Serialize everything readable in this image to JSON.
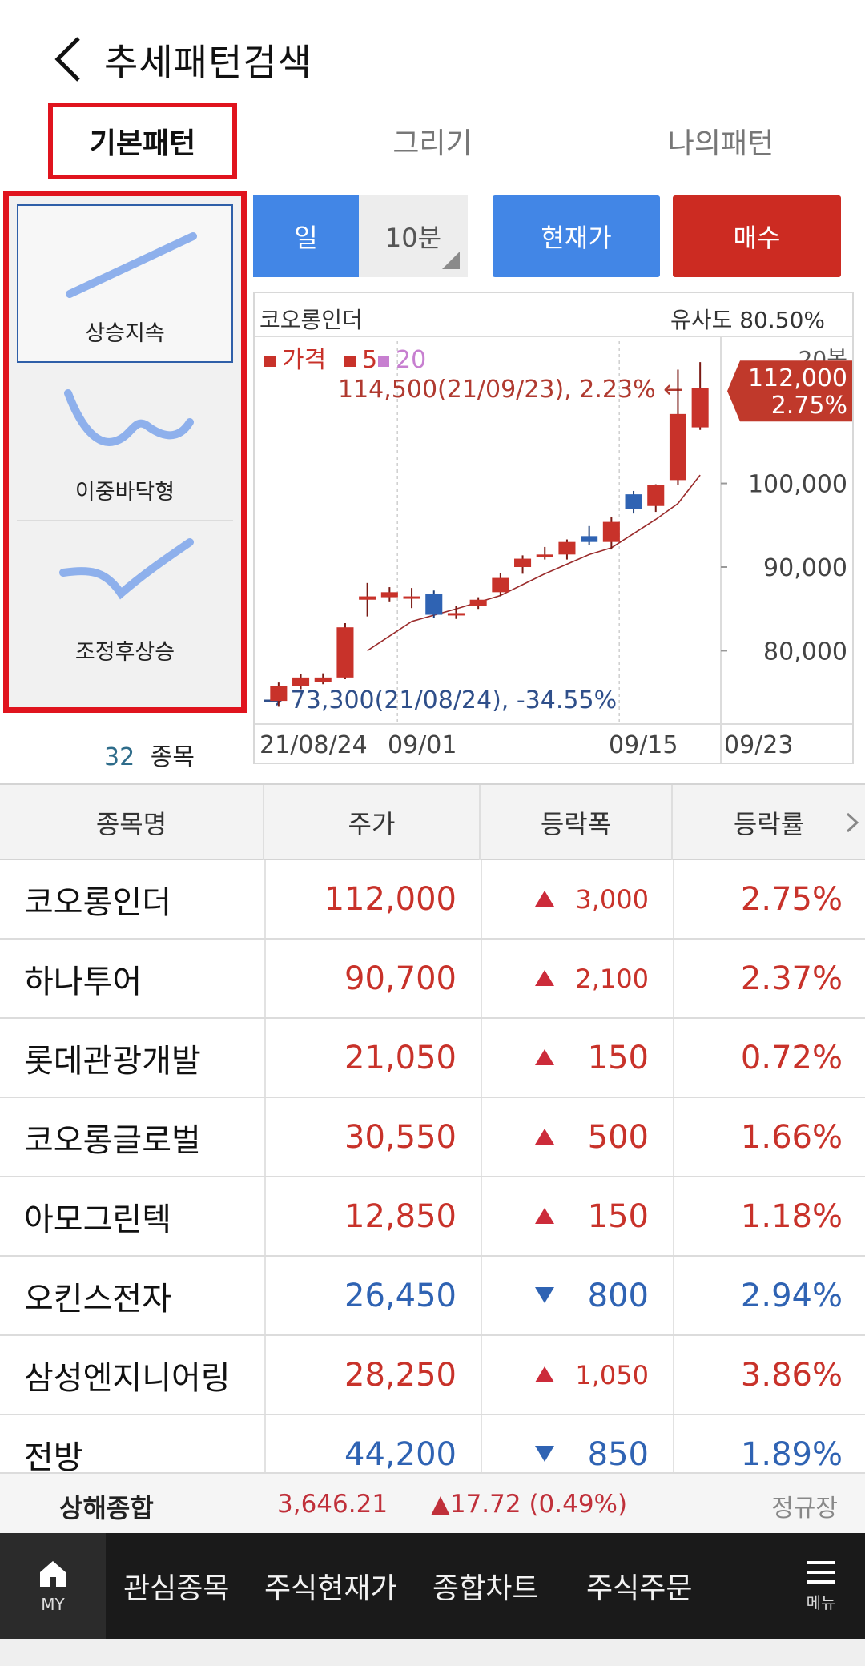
{
  "header": {
    "title": "추세패턴검색"
  },
  "tabs": [
    {
      "label": "기본패턴"
    },
    {
      "label": "그리기"
    },
    {
      "label": "나의패턴"
    }
  ],
  "patterns": [
    {
      "label": "상승지속",
      "icon": "rising-line-pattern-icon"
    },
    {
      "label": "이중바닥형",
      "icon": "double-bottom-pattern-icon"
    },
    {
      "label": "조정후상승",
      "icon": "correction-rise-pattern-icon"
    }
  ],
  "result": {
    "count": "32",
    "unit": "종목"
  },
  "controls": {
    "day": "일",
    "interval": "10분",
    "current_price": "현재가",
    "buy": "매수"
  },
  "chart_data": {
    "type": "candlestick",
    "stock_name": "코오롱인더",
    "similarity": "유사도 80.50%",
    "legend": [
      {
        "name": "가격",
        "color": "#c8322a"
      },
      {
        "name": "5",
        "color": "#c8322a"
      },
      {
        "name": "20",
        "color": "#c77fd0"
      }
    ],
    "bars_label": "20봉",
    "high_annotation": "114,500(21/09/23), 2.23% ←",
    "low_annotation": "→ 73,300(21/08/24), -34.55%",
    "current_price_label": "112,000",
    "current_rate_label": "2.75%",
    "y_ticks": [
      "100,000",
      "90,000",
      "80,000"
    ],
    "y_tick_values": [
      100000,
      90000,
      80000
    ],
    "x_ticks": [
      "21/08/24",
      "09/01",
      "09/15",
      "09/23"
    ],
    "ylim": [
      72000,
      117000
    ],
    "candles": [
      {
        "open": 74000,
        "close": 75800,
        "high": 76200,
        "low": 73300
      },
      {
        "open": 75800,
        "close": 76800,
        "high": 77200,
        "low": 75400
      },
      {
        "open": 76300,
        "close": 76800,
        "high": 77300,
        "low": 76000
      },
      {
        "open": 76800,
        "close": 82800,
        "high": 83300,
        "low": 76600
      },
      {
        "open": 86100,
        "close": 86500,
        "high": 88100,
        "low": 84100
      },
      {
        "open": 86400,
        "close": 87000,
        "high": 87600,
        "low": 85900
      },
      {
        "open": 86400,
        "close": 86500,
        "high": 87500,
        "low": 85100
      },
      {
        "open": 86800,
        "close": 84300,
        "high": 87200,
        "low": 83900
      },
      {
        "open": 84500,
        "close": 84500,
        "high": 85400,
        "low": 83800
      },
      {
        "open": 85400,
        "close": 86100,
        "high": 86400,
        "low": 85000
      },
      {
        "open": 87000,
        "close": 88700,
        "high": 89300,
        "low": 86500
      },
      {
        "open": 90000,
        "close": 91000,
        "high": 91400,
        "low": 89200
      },
      {
        "open": 91500,
        "close": 91500,
        "high": 92400,
        "low": 90900
      },
      {
        "open": 91500,
        "close": 93000,
        "high": 93300,
        "low": 90900
      },
      {
        "open": 93700,
        "close": 93000,
        "high": 94900,
        "low": 92600
      },
      {
        "open": 93000,
        "close": 95400,
        "high": 96000,
        "low": 92100
      },
      {
        "open": 98700,
        "close": 96900,
        "high": 99100,
        "low": 96400
      },
      {
        "open": 97300,
        "close": 99800,
        "high": 99900,
        "low": 96600
      },
      {
        "open": 100400,
        "close": 108300,
        "high": 113600,
        "low": 99800
      },
      {
        "open": 106700,
        "close": 111400,
        "high": 114500,
        "low": 106400
      }
    ],
    "ma": [
      {
        "i": 4,
        "v": 80000
      },
      {
        "i": 6,
        "v": 83500
      },
      {
        "i": 8,
        "v": 85000
      },
      {
        "i": 10,
        "v": 86600
      },
      {
        "i": 12,
        "v": 89200
      },
      {
        "i": 14,
        "v": 91500
      },
      {
        "i": 15,
        "v": 92300
      },
      {
        "i": 17,
        "v": 95700
      },
      {
        "i": 18,
        "v": 97600
      },
      {
        "i": 19,
        "v": 101000
      }
    ]
  },
  "table": {
    "headers": [
      "종목명",
      "주가",
      "등락폭",
      "등락률"
    ],
    "rows": [
      {
        "name": "코오롱인더",
        "price": "112,000",
        "dir": "up",
        "change": "3,000",
        "rate": "2.75%",
        "small": true
      },
      {
        "name": "하나투어",
        "price": "90,700",
        "dir": "up",
        "change": "2,100",
        "rate": "2.37%",
        "small": true
      },
      {
        "name": "롯데관광개발",
        "price": "21,050",
        "dir": "up",
        "change": "150",
        "rate": "0.72%",
        "small": false
      },
      {
        "name": "코오롱글로벌",
        "price": "30,550",
        "dir": "up",
        "change": "500",
        "rate": "1.66%",
        "small": false
      },
      {
        "name": "아모그린텍",
        "price": "12,850",
        "dir": "up",
        "change": "150",
        "rate": "1.18%",
        "small": false
      },
      {
        "name": "오킨스전자",
        "price": "26,450",
        "dir": "down",
        "change": "800",
        "rate": "2.94%",
        "small": false
      },
      {
        "name": "삼성엔지니어링",
        "price": "28,250",
        "dir": "up",
        "change": "1,050",
        "rate": "3.86%",
        "small": true
      },
      {
        "name": "전방",
        "price": "44,200",
        "dir": "down",
        "change": "850",
        "rate": "1.89%",
        "small": false
      }
    ]
  },
  "index_bar": {
    "name": "상해종합",
    "value": "3,646.21",
    "change": "▲17.72 (0.49%)",
    "session": "정규장"
  },
  "bottom_nav": {
    "my_label": "MY",
    "items": [
      "관심종목",
      "주식현재가",
      "종합차트",
      "주식주문"
    ],
    "menu_label": "메뉴"
  },
  "colors": {
    "up": "#c8322a",
    "down": "#2f63b3",
    "accent": "#4286e6",
    "buy": "#cc2b22",
    "highlight": "#e0141e"
  }
}
